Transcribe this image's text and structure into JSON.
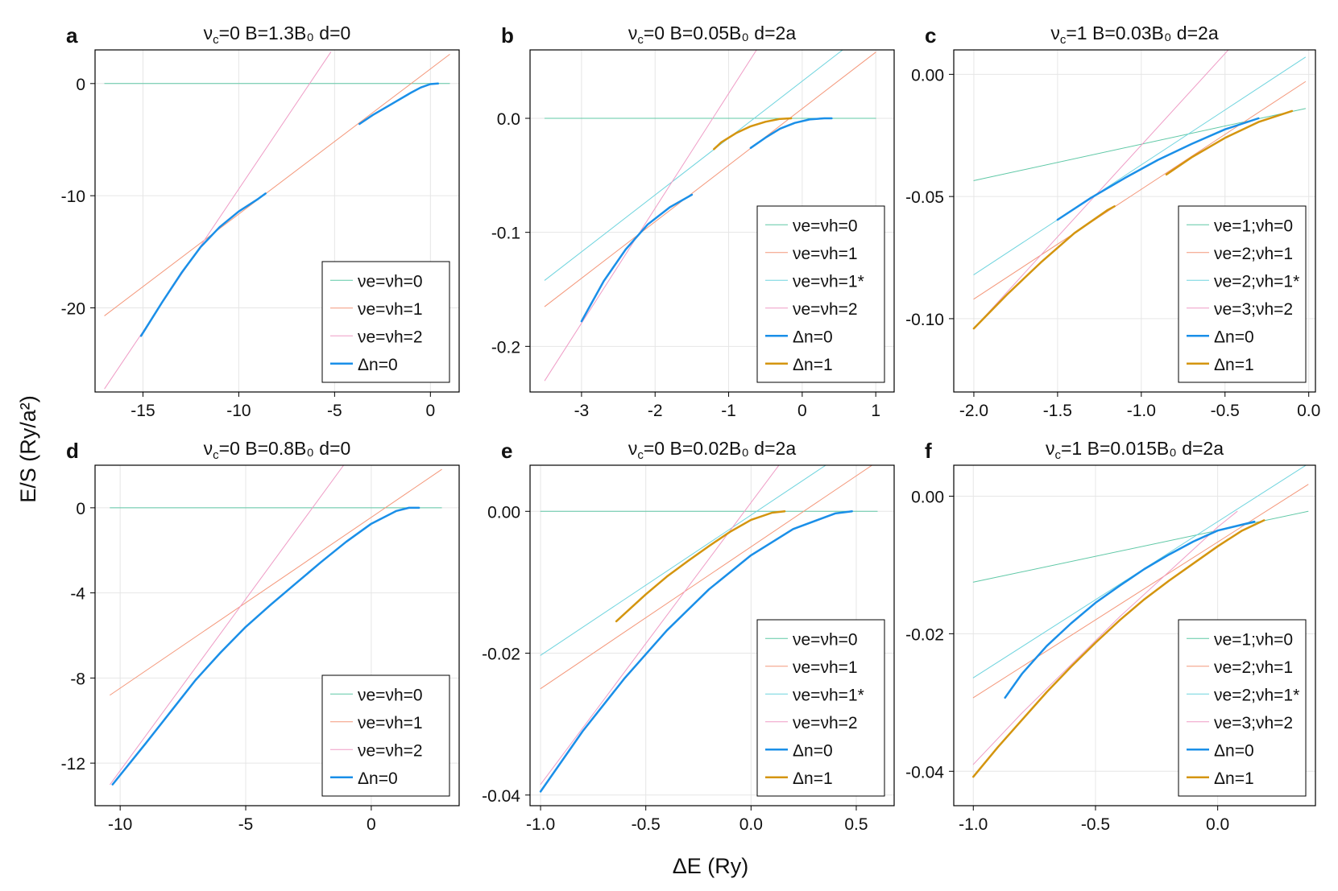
{
  "figure": {
    "ylabel": "E/S (Ry/a²)",
    "xlabel": "ΔE (Ry)"
  },
  "colors": {
    "nu0": "#5fc8a6",
    "nu1": "#f4977a",
    "nu1star": "#6fd4de",
    "nu2": "#ef9cc6",
    "dn0": "#1a8fe8",
    "dn1": "#d4950f",
    "grid": "#e6e6e6",
    "frame": "#000000"
  },
  "chart_data": [
    {
      "type": "line",
      "panel": "a",
      "title": "ν_c=0 B=1.3B₀ d=0",
      "xlim": [
        -17.5,
        1.5
      ],
      "ylim": [
        -27.5,
        3
      ],
      "xticks": [
        -15,
        -10,
        -5,
        0
      ],
      "xtick_labels": [
        "-15",
        "-10",
        "-5",
        "0"
      ],
      "yticks": [
        -20,
        -10,
        0
      ],
      "ytick_labels": [
        "-20",
        "-10",
        "0"
      ],
      "legend_position": "bottom-right",
      "series": [
        {
          "name": "νe=νh=0",
          "color": "nu0",
          "width": 1,
          "x": [
            -17,
            1
          ],
          "y": [
            0,
            0
          ]
        },
        {
          "name": "νe=νh=1",
          "color": "nu1",
          "width": 1,
          "x": [
            -17,
            1
          ],
          "y": [
            -20.7,
            2.6
          ]
        },
        {
          "name": "νe=νh=2",
          "color": "nu2",
          "width": 1,
          "x": [
            -17,
            -5.2
          ],
          "y": [
            -27.2,
            2.8
          ]
        },
        {
          "name": "Δn=0",
          "color": "dn0",
          "width": 2.5,
          "legend": true,
          "x": [
            -15.1,
            -14,
            -13,
            -12,
            -11,
            -10,
            -9,
            -8.6
          ],
          "y": [
            -22.5,
            -19.5,
            -16.9,
            -14.6,
            -12.8,
            -11.4,
            -10.3,
            -9.8
          ]
        },
        {
          "name": "Δn=0",
          "color": "dn0",
          "width": 2.5,
          "legend": false,
          "x": [
            -3.7,
            -3,
            -2,
            -1,
            -0.5,
            0,
            0.4
          ],
          "y": [
            -3.6,
            -2.8,
            -1.8,
            -0.8,
            -0.35,
            -0.05,
            0
          ]
        }
      ]
    },
    {
      "type": "line",
      "panel": "b",
      "title": "ν_c=0 B=0.05B₀ d=2a",
      "xlim": [
        -3.7,
        1.25
      ],
      "ylim": [
        -0.24,
        0.06
      ],
      "xticks": [
        -3,
        -2,
        -1,
        0,
        1
      ],
      "xtick_labels": [
        "-3",
        "-2",
        "-1",
        "0",
        "1"
      ],
      "yticks": [
        -0.2,
        -0.1,
        0
      ],
      "ytick_labels": [
        "-0.2",
        "-0.1",
        "0.0"
      ],
      "legend_position": "bottom-right",
      "series": [
        {
          "name": "νe=νh=0",
          "color": "nu0",
          "width": 1,
          "x": [
            -3.5,
            1
          ],
          "y": [
            0,
            0
          ]
        },
        {
          "name": "νe=νh=1",
          "color": "nu1",
          "width": 1,
          "x": [
            -3.5,
            1
          ],
          "y": [
            -0.165,
            0.058
          ]
        },
        {
          "name": "νe=νh=1*",
          "color": "nu1star",
          "width": 1,
          "x": [
            -3.5,
            0.55
          ],
          "y": [
            -0.142,
            0.06
          ]
        },
        {
          "name": "νe=νh=2",
          "color": "nu2",
          "width": 1,
          "x": [
            -3.5,
            -0.62
          ],
          "y": [
            -0.23,
            0.06
          ]
        },
        {
          "name": "Δn=0",
          "color": "dn0",
          "width": 2.5,
          "legend": true,
          "x": [
            -3,
            -2.7,
            -2.4,
            -2.1,
            -1.8,
            -1.5
          ],
          "y": [
            -0.178,
            -0.143,
            -0.115,
            -0.093,
            -0.078,
            -0.067
          ]
        },
        {
          "name": "Δn=0",
          "color": "dn0",
          "width": 2.5,
          "legend": false,
          "x": [
            -0.7,
            -0.5,
            -0.3,
            -0.1,
            0.1,
            0.3,
            0.4
          ],
          "y": [
            -0.026,
            -0.017,
            -0.009,
            -0.004,
            -0.001,
            0,
            0
          ]
        },
        {
          "name": "Δn=1",
          "color": "dn1",
          "width": 2.5,
          "legend": true,
          "x": [
            -1.2,
            -1.1,
            -0.9,
            -0.7,
            -0.5,
            -0.3,
            -0.15
          ],
          "y": [
            -0.027,
            -0.021,
            -0.013,
            -0.007,
            -0.003,
            -0.0005,
            0
          ]
        }
      ]
    },
    {
      "type": "line",
      "panel": "c",
      "title": "ν_c=1 B=0.03B₀ d=2a",
      "xlim": [
        -2.12,
        0.04
      ],
      "ylim": [
        -0.13,
        0.01
      ],
      "xticks": [
        -2,
        -1.5,
        -1,
        -0.5,
        0
      ],
      "xtick_labels": [
        "-2.0",
        "-1.5",
        "-1.0",
        "-0.5",
        "0.0"
      ],
      "yticks": [
        -0.1,
        -0.05,
        0
      ],
      "ytick_labels": [
        "-0.10",
        "-0.05",
        "0.00"
      ],
      "legend_position": "bottom-right",
      "series": [
        {
          "name": "νe=1;νh=0",
          "color": "nu0",
          "width": 1,
          "x": [
            -2,
            -0.02
          ],
          "y": [
            -0.0435,
            -0.014
          ]
        },
        {
          "name": "νe=2;νh=1",
          "color": "nu1",
          "width": 1,
          "x": [
            -2,
            -0.02
          ],
          "y": [
            -0.092,
            -0.003
          ]
        },
        {
          "name": "νe=2;νh=1*",
          "color": "nu1star",
          "width": 1,
          "x": [
            -2,
            -0.02
          ],
          "y": [
            -0.082,
            0.007
          ]
        },
        {
          "name": "νe=3;νh=2",
          "color": "nu2",
          "width": 1,
          "x": [
            -2,
            -0.48
          ],
          "y": [
            -0.104,
            0.01
          ]
        },
        {
          "name": "Δn=0",
          "color": "dn0",
          "width": 2.5,
          "legend": true,
          "x": [
            -1.5,
            -1.3,
            -1.1,
            -0.9,
            -0.7,
            -0.5,
            -0.3
          ],
          "y": [
            -0.0595,
            -0.0505,
            -0.0425,
            -0.035,
            -0.0285,
            -0.0225,
            -0.018
          ]
        },
        {
          "name": "Δn=1",
          "color": "dn1",
          "width": 2.5,
          "legend": true,
          "x": [
            -2,
            -1.8,
            -1.6,
            -1.4,
            -1.2,
            -1.16
          ],
          "y": [
            -0.104,
            -0.09,
            -0.077,
            -0.065,
            -0.0555,
            -0.054
          ]
        },
        {
          "name": "Δn=1",
          "color": "dn1",
          "width": 2.5,
          "legend": false,
          "x": [
            -0.85,
            -0.7,
            -0.5,
            -0.3,
            -0.1
          ],
          "y": [
            -0.041,
            -0.034,
            -0.026,
            -0.0195,
            -0.015
          ]
        }
      ]
    },
    {
      "type": "line",
      "panel": "d",
      "title": "ν_c=0 B=0.8B₀ d=0",
      "xlim": [
        -11,
        3.5
      ],
      "ylim": [
        -14,
        2
      ],
      "xticks": [
        -10,
        -5,
        0
      ],
      "xtick_labels": [
        "-10",
        "-5",
        "0"
      ],
      "yticks": [
        -12,
        -8,
        -4,
        0
      ],
      "ytick_labels": [
        "-12",
        "-8",
        "-4",
        "0"
      ],
      "legend_position": "bottom-right",
      "series": [
        {
          "name": "νe=νh=0",
          "color": "nu0",
          "width": 1,
          "x": [
            -10.4,
            2.8
          ],
          "y": [
            0,
            0
          ]
        },
        {
          "name": "νe=νh=1",
          "color": "nu1",
          "width": 1,
          "x": [
            -10.4,
            2.8
          ],
          "y": [
            -8.8,
            1.8
          ]
        },
        {
          "name": "νe=νh=2",
          "color": "nu2",
          "width": 1,
          "x": [
            -10.4,
            -1.1
          ],
          "y": [
            -13,
            2
          ]
        },
        {
          "name": "Δn=0",
          "color": "dn0",
          "width": 2.5,
          "legend": true,
          "x": [
            -10.3,
            -9,
            -8,
            -7,
            -6,
            -5,
            -4,
            -3,
            -2,
            -1,
            0,
            1,
            1.5,
            1.9
          ],
          "y": [
            -13,
            -11.1,
            -9.6,
            -8.1,
            -6.8,
            -5.6,
            -4.55,
            -3.55,
            -2.55,
            -1.6,
            -0.75,
            -0.15,
            0,
            0
          ]
        }
      ]
    },
    {
      "type": "line",
      "panel": "e",
      "title": "ν_c=0 B=0.02B₀ d=2a",
      "xlim": [
        -1.05,
        0.68
      ],
      "ylim": [
        -0.0415,
        0.0065
      ],
      "xticks": [
        -1,
        -0.5,
        0,
        0.5
      ],
      "xtick_labels": [
        "-1.0",
        "-0.5",
        "0.0",
        "0.5"
      ],
      "yticks": [
        -0.04,
        -0.02,
        0
      ],
      "ytick_labels": [
        "-0.04",
        "-0.02",
        "0.00"
      ],
      "legend_position": "bottom-right",
      "series": [
        {
          "name": "νe=νh=0",
          "color": "nu0",
          "width": 1,
          "x": [
            -1,
            0.6
          ],
          "y": [
            0,
            0
          ]
        },
        {
          "name": "νe=νh=1",
          "color": "nu1",
          "width": 1,
          "x": [
            -1,
            0.6
          ],
          "y": [
            -0.025,
            0.007
          ]
        },
        {
          "name": "νe=νh=1*",
          "color": "nu1star",
          "width": 1,
          "x": [
            -1,
            0.37
          ],
          "y": [
            -0.0203,
            0.0068
          ]
        },
        {
          "name": "νe=νh=2",
          "color": "nu2",
          "width": 1,
          "x": [
            -1,
            0.14
          ],
          "y": [
            -0.0385,
            0.0068
          ]
        },
        {
          "name": "Δn=0",
          "color": "dn0",
          "width": 2.5,
          "legend": true,
          "x": [
            -1,
            -0.8,
            -0.6,
            -0.4,
            -0.2,
            0,
            0.2,
            0.4,
            0.48
          ],
          "y": [
            -0.0395,
            -0.031,
            -0.0235,
            -0.0168,
            -0.011,
            -0.0062,
            -0.0025,
            -0.0003,
            0
          ]
        },
        {
          "name": "Δn=1",
          "color": "dn1",
          "width": 2.5,
          "legend": true,
          "x": [
            -0.64,
            -0.5,
            -0.4,
            -0.3,
            -0.2,
            -0.1,
            0,
            0.1,
            0.16
          ],
          "y": [
            -0.0155,
            -0.0117,
            -0.0092,
            -0.007,
            -0.0049,
            -0.0029,
            -0.0012,
            -0.0002,
            0
          ]
        }
      ]
    },
    {
      "type": "line",
      "panel": "f",
      "title": "ν_c=1 B=0.015B₀ d=2a",
      "xlim": [
        -1.08,
        0.4
      ],
      "ylim": [
        -0.045,
        0.0045
      ],
      "xticks": [
        -1,
        -0.5,
        0
      ],
      "xtick_labels": [
        "-1.0",
        "-0.5",
        "0.0"
      ],
      "yticks": [
        -0.04,
        -0.02,
        0
      ],
      "ytick_labels": [
        "-0.04",
        "-0.02",
        "0.00"
      ],
      "legend_position": "bottom-right",
      "series": [
        {
          "name": "νe=1;νh=0",
          "color": "nu0",
          "width": 1,
          "x": [
            -1,
            0.37
          ],
          "y": [
            -0.0125,
            -0.0022
          ]
        },
        {
          "name": "νe=2;νh=1",
          "color": "nu1",
          "width": 1,
          "x": [
            -1,
            0.37
          ],
          "y": [
            -0.0293,
            0.0017
          ]
        },
        {
          "name": "νe=2;νh=1*",
          "color": "nu1star",
          "width": 1,
          "x": [
            -1,
            0.37
          ],
          "y": [
            -0.0264,
            0.0047
          ]
        },
        {
          "name": "νe=3;νh=2",
          "color": "nu2",
          "width": 1,
          "x": [
            -1,
            -0.8,
            -0.6,
            -0.4,
            -0.2,
            0,
            0.08
          ],
          "y": [
            -0.039,
            -0.0315,
            -0.0245,
            -0.0175,
            -0.011,
            -0.0045,
            -0.0022
          ]
        },
        {
          "name": "Δn=0",
          "color": "dn0",
          "width": 2.5,
          "legend": true,
          "x": [
            -0.87,
            -0.8,
            -0.7,
            -0.6,
            -0.5,
            -0.4,
            -0.3,
            -0.2,
            -0.1,
            0,
            0.15
          ],
          "y": [
            -0.0293,
            -0.0258,
            -0.0218,
            -0.0185,
            -0.0155,
            -0.013,
            -0.0106,
            -0.0085,
            -0.0066,
            -0.005,
            -0.0037
          ]
        },
        {
          "name": "Δn=1",
          "color": "dn1",
          "width": 2.5,
          "legend": true,
          "x": [
            -1,
            -0.9,
            -0.8,
            -0.7,
            -0.6,
            -0.5,
            -0.4,
            -0.3,
            -0.2,
            -0.1,
            0,
            0.1,
            0.19
          ],
          "y": [
            -0.0408,
            -0.0365,
            -0.0325,
            -0.0285,
            -0.0248,
            -0.0213,
            -0.018,
            -0.015,
            -0.0123,
            -0.0098,
            -0.0073,
            -0.005,
            -0.0035
          ]
        }
      ]
    }
  ]
}
